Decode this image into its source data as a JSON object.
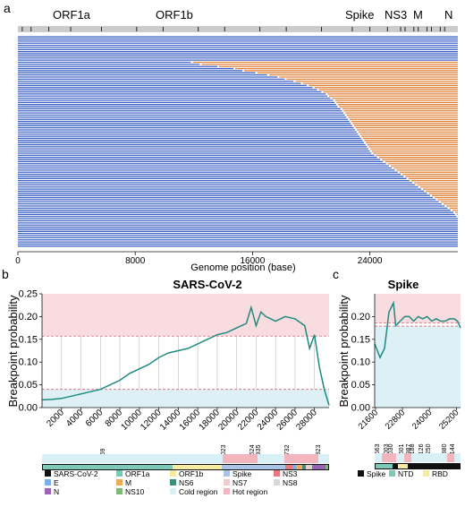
{
  "chart_data": [
    {
      "panel": "a",
      "type": "mosaic",
      "gene_labels": [
        "ORF1a",
        "ORF1b",
        "Spike",
        "NS3",
        "M",
        "N"
      ],
      "x_ticks": [
        0,
        8000,
        16000,
        24000
      ],
      "xlim": [
        0,
        30000
      ],
      "xlabel": "Genome position (base)",
      "colors": {
        "parent_a": "#3f63c4",
        "parent_b": "#e0823a",
        "bar": "#c8c8c8"
      },
      "row_count": 100,
      "breakpoints": [
        30000,
        30000,
        30000,
        30000,
        30000,
        30000,
        30000,
        30000,
        30000,
        30000,
        30000,
        30000,
        11800,
        12400,
        13600,
        14700,
        15300,
        16200,
        17000,
        17700,
        18200,
        18800,
        19300,
        19700,
        20100,
        20400,
        20700,
        21000,
        21100,
        21300,
        21500,
        21600,
        21700,
        21800,
        22000,
        22100,
        22200,
        22300,
        22400,
        22500,
        22600,
        22700,
        22800,
        22900,
        23000,
        23100,
        23200,
        23300,
        23400,
        23500,
        23600,
        23700,
        23800,
        23900,
        24000,
        24100,
        24300,
        24500,
        24700,
        24900,
        25100,
        25300,
        25500,
        25700,
        25900,
        26100,
        26300,
        26500,
        26700,
        26900,
        27100,
        27300,
        27500,
        27700,
        27900,
        28100,
        28300,
        28500,
        28700,
        28900,
        29100,
        29300,
        29500,
        29700,
        29800,
        29900,
        30000,
        30000,
        30000,
        30000,
        30000,
        30000,
        30000,
        30000,
        30000,
        30000,
        30000,
        30000,
        30000,
        30000
      ]
    },
    {
      "panel": "b",
      "type": "line",
      "title": "SARS-CoV-2",
      "ylabel": "Breakpoint probability",
      "xlim": [
        0,
        29500
      ],
      "ylim": [
        0,
        0.25
      ],
      "x_ticks": [
        2000,
        4000,
        6000,
        8000,
        10000,
        12000,
        14000,
        16000,
        18000,
        20000,
        22000,
        24000,
        26000,
        28000
      ],
      "y_ticks": [
        0.0,
        0.05,
        0.1,
        0.15,
        0.2,
        0.25
      ],
      "hot_threshold": 0.157,
      "cold_threshold": 0.04,
      "x": [
        0,
        1000,
        2000,
        3000,
        4000,
        5000,
        6000,
        7000,
        8000,
        9000,
        10000,
        11000,
        12000,
        13000,
        14000,
        15000,
        16000,
        17000,
        18000,
        19000,
        20000,
        21000,
        21500,
        22000,
        22500,
        23000,
        24000,
        25000,
        26000,
        27000,
        27500,
        28000,
        28500,
        29000,
        29500
      ],
      "y": [
        0.017,
        0.018,
        0.02,
        0.025,
        0.03,
        0.035,
        0.04,
        0.05,
        0.06,
        0.075,
        0.085,
        0.095,
        0.11,
        0.12,
        0.125,
        0.13,
        0.14,
        0.15,
        0.16,
        0.165,
        0.175,
        0.185,
        0.22,
        0.18,
        0.21,
        0.2,
        0.19,
        0.2,
        0.195,
        0.18,
        0.13,
        0.16,
        0.09,
        0.04,
        0.005
      ],
      "marker_labels": [
        "2",
        "6569",
        "19023",
        "21624",
        "21935",
        "26732",
        "28823"
      ],
      "legend": [
        "SARS-CoV-2",
        "ORF1a",
        "ORF1b",
        "Spike",
        "NS3",
        "E",
        "M",
        "NS6",
        "NS7",
        "NS8",
        "N",
        "NS10",
        "Cold region",
        "Hot region"
      ],
      "legend_colors": [
        "#111111",
        "#7ec8b8",
        "#f7eb9e",
        "#a9c4e6",
        "#e8787e",
        "#7aaee8",
        "#f0ab58",
        "#3b8f7e",
        "#f1cccc",
        "#d7d7d7",
        "#9a63b8",
        "#7db87a",
        "#d8f0f6",
        "#f3b5bd"
      ]
    },
    {
      "panel": "c",
      "type": "line",
      "title": "Spike",
      "ylabel": "Breakpoint probability",
      "xlim": [
        21563,
        25384
      ],
      "ylim": [
        0,
        0.25
      ],
      "x_ticks": [
        21600,
        22800,
        24000,
        25200
      ],
      "y_ticks": [
        0.0,
        0.05,
        0.1,
        0.15,
        0.2
      ],
      "hot_threshold": 0.186,
      "cold_threshold": 0.179,
      "x": [
        21563,
        21800,
        22000,
        22200,
        22400,
        22500,
        22700,
        22900,
        23100,
        23300,
        23500,
        23700,
        23900,
        24100,
        24300,
        24500,
        24700,
        24900,
        25100,
        25250,
        25384
      ],
      "y": [
        0.14,
        0.11,
        0.13,
        0.21,
        0.23,
        0.18,
        0.19,
        0.2,
        0.2,
        0.19,
        0.2,
        0.195,
        0.2,
        0.19,
        0.195,
        0.19,
        0.19,
        0.195,
        0.195,
        0.19,
        0.175
      ],
      "marker_labels": [
        "21563",
        "22003",
        "22030",
        "22601",
        "23987",
        "23188",
        "24126",
        "24250",
        "24880",
        "25144"
      ],
      "legend": [
        "Spike",
        "NTD",
        "RBD"
      ],
      "legend_colors": [
        "#111111",
        "#7ec8b8",
        "#f7eb9e"
      ]
    }
  ],
  "panel_letters": [
    "a",
    "b",
    "c"
  ]
}
